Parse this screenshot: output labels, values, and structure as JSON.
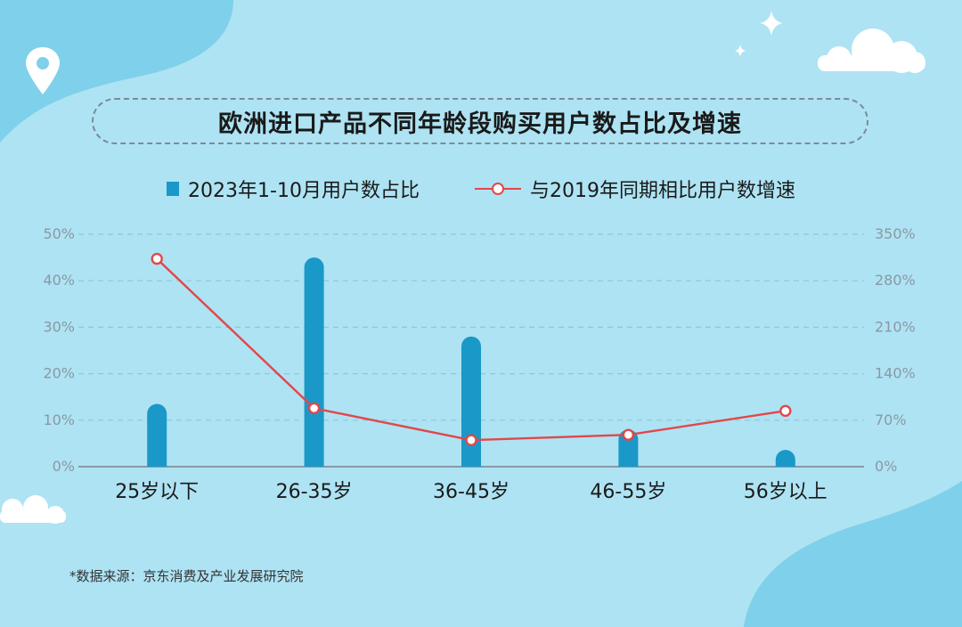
{
  "title": "欧洲进口产品不同年龄段购买用户数占比及增速",
  "source": "*数据来源：京东消费及产业发展研究院",
  "colors": {
    "bar": "#1a98c8",
    "line": "#e2474b",
    "background": "#aee3f3",
    "blob": "#7fd0ea"
  },
  "decorations": [
    "location-pin-icon",
    "cloud-icon",
    "sparkle-icon"
  ],
  "chart_data": {
    "type": "bar",
    "categories": [
      "25岁以下",
      "26-35岁",
      "36-45岁",
      "46-55岁",
      "56岁以上"
    ],
    "series": [
      {
        "name": "2023年1-10月用户数占比",
        "type": "bar",
        "axis": "left",
        "values": [
          13.5,
          45,
          28,
          8,
          3
        ]
      },
      {
        "name": "与2019年同期相比用户数增速",
        "type": "line",
        "axis": "right",
        "values": [
          313,
          88,
          40,
          48,
          84
        ]
      }
    ],
    "y_left": {
      "range": [
        0,
        50
      ],
      "ticks": [
        "0%",
        "10%",
        "20%",
        "30%",
        "40%",
        "50%"
      ]
    },
    "y_right": {
      "range": [
        0,
        350
      ],
      "ticks": [
        "0%",
        "70%",
        "140%",
        "210%",
        "280%",
        "350%"
      ]
    },
    "grid": true,
    "legend": "top-center"
  }
}
